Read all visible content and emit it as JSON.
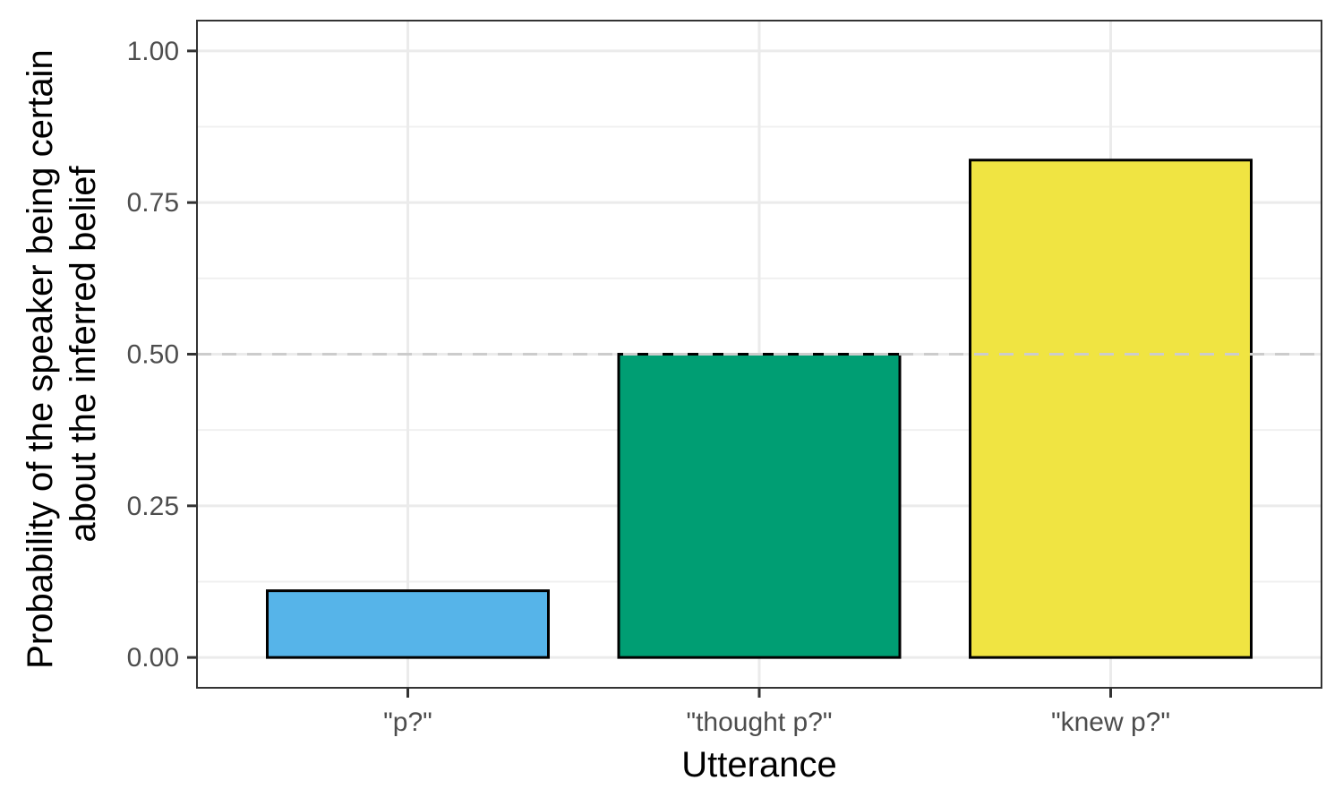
{
  "chart_data": {
    "type": "bar",
    "categories": [
      "\"p?\"",
      "\"thought p?\"",
      "\"knew p?\""
    ],
    "values": [
      0.11,
      0.5,
      0.82
    ],
    "bar_colors": [
      "#56B4E9",
      "#009E73",
      "#F0E442"
    ],
    "title": "",
    "xlabel": "Utterance",
    "ylabel_lines": [
      "Probability of the speaker being certain",
      "about the inferred belief"
    ],
    "ylim": [
      -0.05,
      1.05
    ],
    "yticks": [
      0.0,
      0.25,
      0.5,
      0.75,
      1.0
    ],
    "ytick_labels": [
      "0.00",
      "0.25",
      "0.50",
      "0.75",
      "1.00"
    ],
    "reference_line": {
      "value": 0.5,
      "style": "dashed",
      "color": "#cccccc"
    },
    "grid": true,
    "legend": "none"
  }
}
